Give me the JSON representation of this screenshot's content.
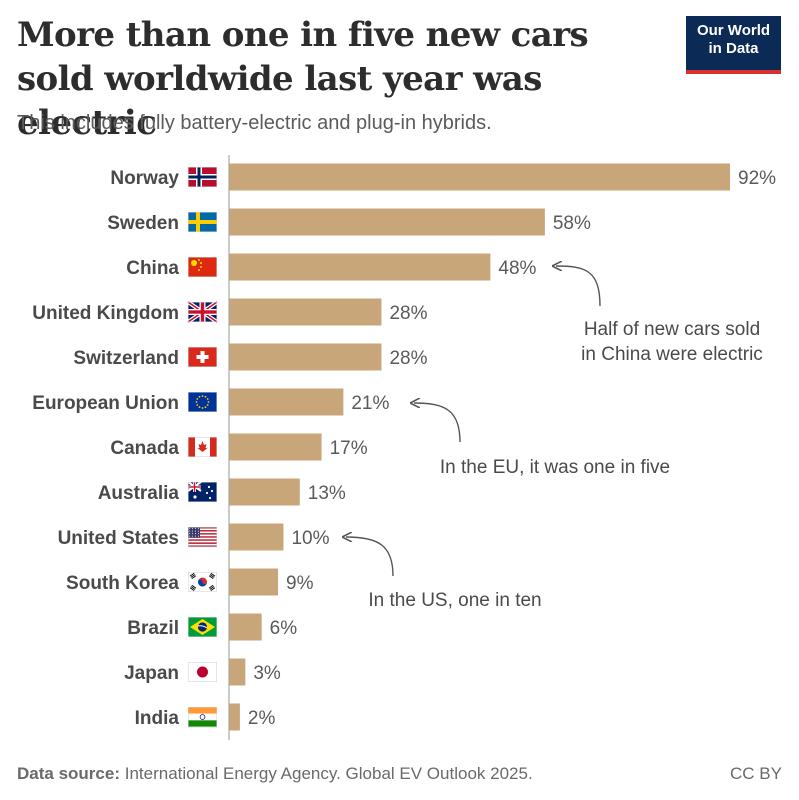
{
  "header": {
    "title": "More than one in five new cars sold worldwide last year was electric",
    "subtitle": "This includes fully battery-electric and plug-in hybrids.",
    "logo_line1": "Our World",
    "logo_line2": "in Data"
  },
  "footer": {
    "source_label": "Data source:",
    "source_text": "International Energy Agency. Global EV Outlook 2025.",
    "license": "CC BY"
  },
  "colors": {
    "bar": "#c9a57a",
    "axis": "#a8a8a8",
    "label": "#4a4a4a",
    "value": "#5a5a5a",
    "annotation": "#4a4a4a"
  },
  "chart_data": {
    "type": "bar",
    "orientation": "horizontal",
    "categories": [
      "Norway",
      "Sweden",
      "China",
      "United Kingdom",
      "Switzerland",
      "European Union",
      "Canada",
      "Australia",
      "United States",
      "South Korea",
      "Brazil",
      "Japan",
      "India"
    ],
    "values": [
      92,
      58,
      48,
      28,
      28,
      21,
      17,
      13,
      10,
      9,
      6,
      3,
      2
    ],
    "value_labels": [
      "92%",
      "58%",
      "48%",
      "28%",
      "28%",
      "21%",
      "17%",
      "13%",
      "10%",
      "9%",
      "6%",
      "3%",
      "2%"
    ],
    "flags": [
      "norway-flag-icon",
      "sweden-flag-icon",
      "china-flag-icon",
      "uk-flag-icon",
      "switzerland-flag-icon",
      "eu-flag-icon",
      "canada-flag-icon",
      "australia-flag-icon",
      "us-flag-icon",
      "south-korea-flag-icon",
      "brazil-flag-icon",
      "japan-flag-icon",
      "india-flag-icon"
    ],
    "xlim": [
      0,
      92
    ],
    "annotations": [
      {
        "target": "China",
        "lines": [
          "Half of new cars sold",
          "in China were electric"
        ]
      },
      {
        "target": "European Union",
        "lines": [
          "In the EU, it was one in five"
        ]
      },
      {
        "target": "United States",
        "lines": [
          "In the US, one in ten"
        ]
      }
    ]
  }
}
